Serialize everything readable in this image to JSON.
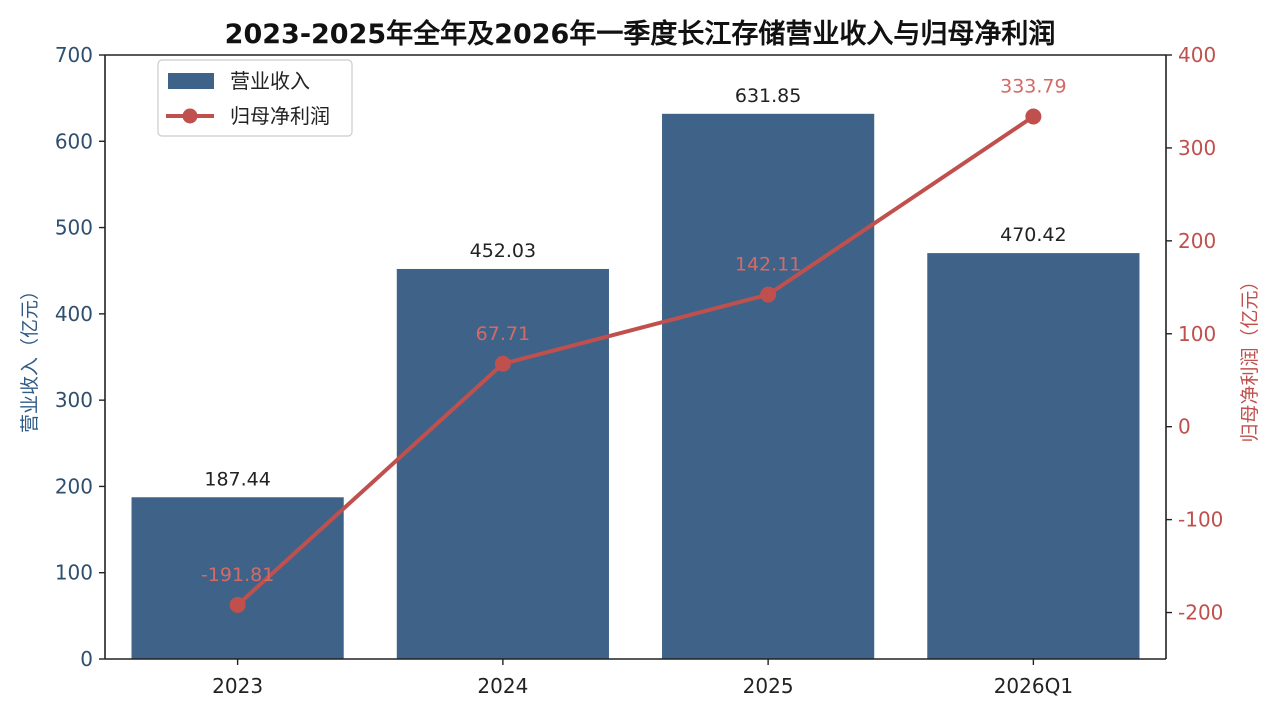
{
  "chart_data": {
    "type": "bar",
    "title": "2023-2025年全年及2026年一季度长江存储营业收入与归母净利润",
    "categories": [
      "2023",
      "2024",
      "2025",
      "2026Q1"
    ],
    "series": [
      {
        "name": "营业收入",
        "type": "bar",
        "axis": "left",
        "color": "#3f6388",
        "values": [
          187.44,
          452.03,
          631.85,
          470.42
        ],
        "labels": [
          "187.44",
          "452.03",
          "631.85",
          "470.42"
        ]
      },
      {
        "name": "归母净利润",
        "type": "line",
        "axis": "right",
        "color": "#c0504d",
        "values": [
          -191.81,
          67.71,
          142.11,
          333.79
        ],
        "labels": [
          "-191.81",
          "67.71",
          "142.11",
          "333.79"
        ]
      }
    ],
    "ylabel": "营业收入（亿元）",
    "ylabel_right": "归母净利润（亿元）",
    "ylim": [
      0,
      700
    ],
    "ylim_right": [
      -250,
      400
    ],
    "yticks": [
      "0",
      "100",
      "200",
      "300",
      "400",
      "500",
      "600",
      "700"
    ],
    "yticks_right": [
      "-200",
      "-100",
      "0",
      "100",
      "200",
      "300",
      "400"
    ],
    "grid": false,
    "legend_position": "top-left"
  }
}
